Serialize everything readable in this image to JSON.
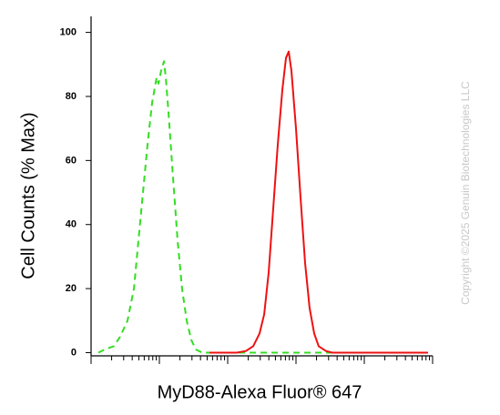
{
  "chart_data": {
    "type": "line",
    "xlabel": "MyD88-Alexa Fluor® 647",
    "ylabel": "Cell Counts (% Max)",
    "annotation": "Copyright ©2025 Genuin Biotechnologies LLC",
    "xscale": "log",
    "xlim": [
      1,
      100000
    ],
    "ylim": [
      -1,
      105
    ],
    "yticks": [
      0,
      20,
      40,
      60,
      80,
      100
    ],
    "xticks": [
      1,
      2,
      3,
      4,
      5,
      6,
      7,
      8,
      9,
      10,
      20,
      30,
      40,
      50,
      60,
      70,
      80,
      90,
      100,
      200,
      300,
      400,
      500,
      600,
      700,
      800,
      900,
      1000,
      2000,
      3000,
      4000,
      5000,
      6000,
      7000,
      8000,
      9000,
      10000,
      20000,
      30000,
      40000,
      50000,
      60000,
      70000,
      80000,
      90000,
      100000
    ],
    "grid": false,
    "series": [
      {
        "color": "#33dd22",
        "dash": true,
        "x": [
          1.28,
          1.58,
          2.15,
          2.67,
          3.41,
          4.24,
          4.93,
          5.75,
          6.71,
          7.82,
          9.12,
          9.7,
          10.6,
          11.7,
          12.4,
          13.6,
          15.8,
          18.5,
          21.5,
          25.1,
          29.3,
          34.1,
          42.4,
          464,
          85800
        ],
        "values": [
          0,
          1,
          2,
          5,
          10,
          20,
          35,
          50,
          65,
          78,
          86,
          84,
          88,
          91,
          86,
          75,
          55,
          35,
          20,
          10,
          4,
          1,
          0,
          0,
          0
        ]
      },
      {
        "color": "#ee1111",
        "dash": false,
        "x": [
          54.1,
          136,
          185,
          236,
          293,
          342,
          398,
          464,
          541,
          631,
          713,
          782,
          858,
          1000,
          1170,
          1360,
          1580,
          1850,
          2150,
          2750,
          3410,
          85800
        ],
        "values": [
          0,
          0,
          0.5,
          2,
          6,
          12,
          25,
          45,
          65,
          82,
          92,
          94,
          88,
          70,
          48,
          28,
          14,
          6,
          2,
          0.5,
          0,
          0
        ]
      }
    ]
  }
}
